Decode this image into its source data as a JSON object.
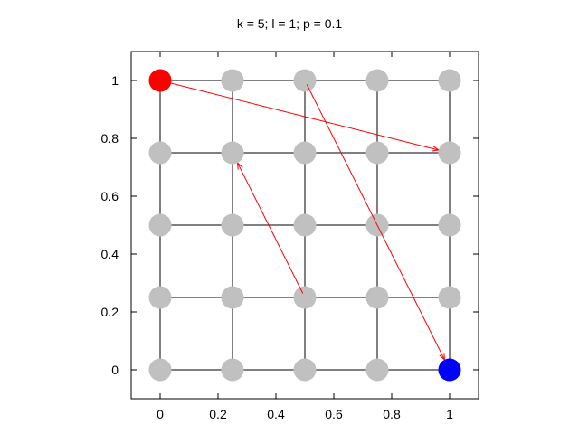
{
  "title": "k = 5; l = 1; p = 0.1",
  "chart_data": {
    "type": "scatter",
    "title": "k = 5; l = 1; p = 0.1",
    "xlabel": "",
    "ylabel": "",
    "xlim": [
      -0.1,
      1.1
    ],
    "ylim": [
      -0.1,
      1.1
    ],
    "x_ticks": [
      0,
      0.2,
      0.4,
      0.6,
      0.8,
      1
    ],
    "y_ticks": [
      0,
      0.2,
      0.4,
      0.6,
      0.8,
      1
    ],
    "x_tick_labels": [
      "0",
      "0.2",
      "0.4",
      "0.6",
      "0.8",
      "1"
    ],
    "y_tick_labels": [
      "0",
      "0.2",
      "0.4",
      "0.6",
      "0.8",
      "1"
    ],
    "grid": false,
    "lattice": {
      "k": 5,
      "coords": [
        0,
        0.25,
        0.5,
        0.75,
        1
      ]
    },
    "long_range_links": [
      {
        "from": [
          0,
          1
        ],
        "to": [
          1,
          0.75
        ]
      },
      {
        "from": [
          0.5,
          1
        ],
        "to": [
          1,
          0
        ]
      },
      {
        "from": [
          0.5,
          0.25
        ],
        "to": [
          0.25,
          0.75
        ]
      }
    ],
    "highlight_nodes": [
      {
        "at": [
          0,
          1
        ],
        "color": "#ff0000"
      },
      {
        "at": [
          1,
          0
        ],
        "color": "#0000ff"
      }
    ],
    "colors": {
      "node": "#c0c0c0",
      "edge": "#000000",
      "link": "#ff0000",
      "axis": "#000000"
    }
  }
}
